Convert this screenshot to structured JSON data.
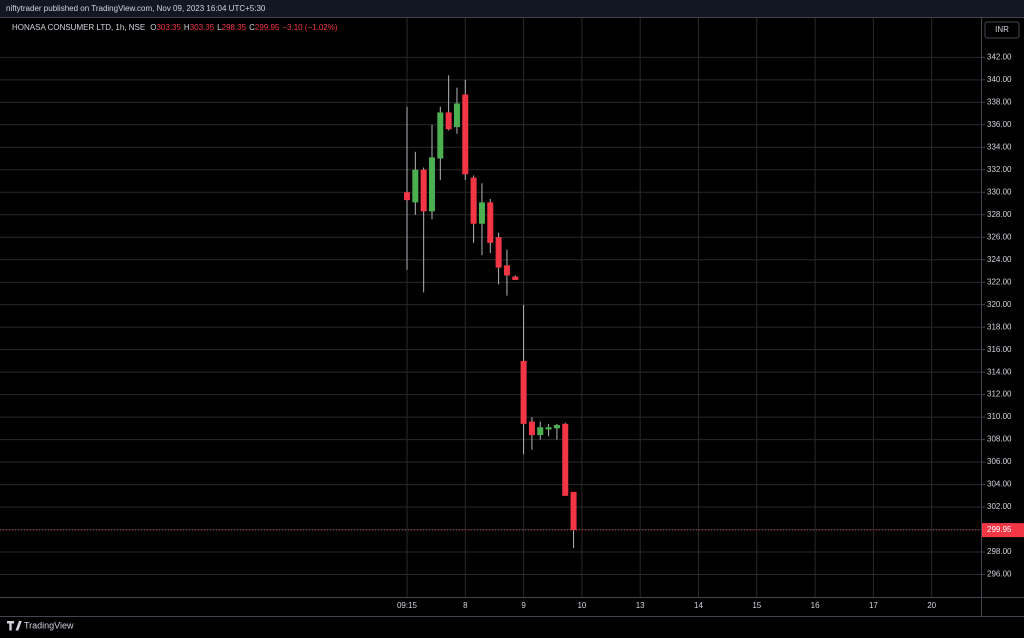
{
  "header": {
    "published": "niftytrader published on TradingView.com, Nov 09, 2023 16:04 UTC+5:30"
  },
  "footer": {
    "brand": "TradingView"
  },
  "chart_data": {
    "type": "candlestick",
    "legend": {
      "symbol": "HONASA CONSUMER LTD, 1h, NSE",
      "items": [
        {
          "key": "O",
          "value": "303.35"
        },
        {
          "key": "H",
          "value": "303.35"
        },
        {
          "key": "L",
          "value": "298.35"
        },
        {
          "key": "C",
          "value": "299.95"
        }
      ],
      "change": "−3.10 (−1.02%)"
    },
    "currency": "INR",
    "up_color": "#4caf50",
    "down_color": "#f23645",
    "open": [
      330.0,
      329.1,
      332.0,
      328.3,
      333.0,
      337.1,
      335.8,
      338.7,
      331.3,
      327.2,
      329.1,
      326.0,
      323.5,
      322.5,
      315.0,
      309.6,
      308.4,
      308.9,
      309.0,
      309.4,
      303.35
    ],
    "high": [
      337.6,
      333.6,
      332.2,
      336.0,
      337.6,
      340.4,
      339.3,
      340.0,
      331.5,
      330.8,
      329.4,
      326.4,
      324.9,
      322.6,
      320.0,
      310.0,
      309.6,
      309.4,
      309.4,
      309.5,
      303.35
    ],
    "low": [
      323.1,
      328.0,
      321.1,
      327.6,
      331.1,
      335.5,
      335.2,
      331.1,
      325.5,
      324.4,
      324.6,
      321.8,
      320.8,
      322.2,
      306.7,
      307.1,
      308.0,
      308.3,
      308.0,
      303.0,
      298.35
    ],
    "close": [
      329.3,
      332.0,
      328.3,
      333.1,
      337.1,
      335.6,
      337.9,
      331.6,
      327.2,
      329.1,
      325.5,
      323.3,
      322.6,
      322.2,
      309.4,
      308.4,
      309.1,
      309.1,
      309.3,
      303.0,
      299.95
    ],
    "xticks": [
      "09:15",
      "8",
      "9",
      "10",
      "13",
      "14",
      "15",
      "16",
      "17",
      "20"
    ],
    "ylim": [
      294,
      345.5
    ],
    "yticks": [
      {
        "value": 296,
        "label": "296.00"
      },
      {
        "value": 298,
        "label": "298.00"
      },
      {
        "value": 300,
        "label": "300.00"
      },
      {
        "value": 302,
        "label": "302.00"
      },
      {
        "value": 304,
        "label": "304.00"
      },
      {
        "value": 306,
        "label": "306.00"
      },
      {
        "value": 308,
        "label": "308.00"
      },
      {
        "value": 310,
        "label": "310.00"
      },
      {
        "value": 312,
        "label": "312.00"
      },
      {
        "value": 314,
        "label": "314.00"
      },
      {
        "value": 316,
        "label": "316.00"
      },
      {
        "value": 318,
        "label": "318.00"
      },
      {
        "value": 320,
        "label": "320.00"
      },
      {
        "value": 322,
        "label": "322.00"
      },
      {
        "value": 324,
        "label": "324.00"
      },
      {
        "value": 326,
        "label": "326.00"
      },
      {
        "value": 328,
        "label": "328.00"
      },
      {
        "value": 330,
        "label": "330.00"
      },
      {
        "value": 332,
        "label": "332.00"
      },
      {
        "value": 334,
        "label": "334.00"
      },
      {
        "value": 336,
        "label": "336.00"
      },
      {
        "value": 338,
        "label": "338.00"
      },
      {
        "value": 340,
        "label": "340.00"
      },
      {
        "value": 342,
        "label": "342.00"
      }
    ],
    "last_price": {
      "value": 299.95,
      "label": "299.95"
    },
    "grid": true
  }
}
